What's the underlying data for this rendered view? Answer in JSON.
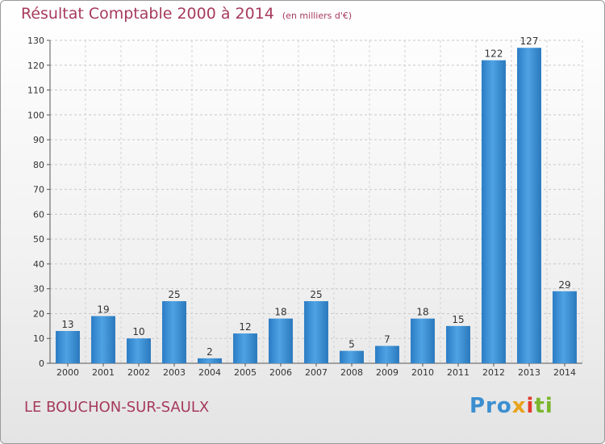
{
  "chart_data": {
    "type": "bar",
    "title": "Résultat Comptable 2000 à 2014",
    "subtitle": "(en milliers d'€)",
    "categories": [
      "2000",
      "2001",
      "2002",
      "2003",
      "2004",
      "2005",
      "2006",
      "2007",
      "2008",
      "2009",
      "2010",
      "2011",
      "2012",
      "2013",
      "2014"
    ],
    "values": [
      13,
      19,
      10,
      25,
      2,
      12,
      18,
      25,
      5,
      7,
      18,
      15,
      122,
      127,
      29
    ],
    "ylim": [
      0,
      130
    ],
    "yticks": [
      0,
      10,
      20,
      30,
      40,
      50,
      60,
      70,
      80,
      90,
      100,
      110,
      120,
      130
    ],
    "grid": true,
    "bar_color": "#3a8fd4",
    "title_color": "#a63a5c"
  },
  "footer": {
    "place": "LE BOUCHON-SUR-SAULX",
    "logo_parts": [
      "Pro",
      "x",
      "i",
      "ti"
    ]
  }
}
